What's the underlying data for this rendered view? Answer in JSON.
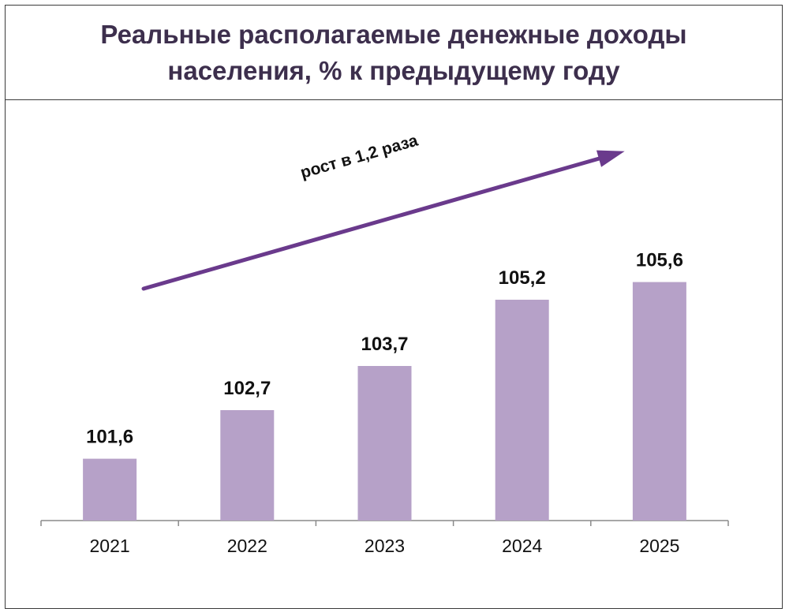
{
  "chart_data": {
    "type": "bar",
    "title": "Реальные располагаемые денежные доходы населения, % к предыдущему году",
    "categories": [
      "2021",
      "2022",
      "2023",
      "2024",
      "2025"
    ],
    "values": [
      101.6,
      102.7,
      103.7,
      105.2,
      105.6
    ],
    "value_labels": [
      "101,6",
      "102,7",
      "103,7",
      "105,2",
      "105,6"
    ],
    "annotation": "рост в 1,2 раза",
    "bar_color": "#b6a1c8",
    "arrow_color": "#6a3a8c",
    "title_color": "#3d2f4d",
    "legend": "none",
    "grid": false
  }
}
